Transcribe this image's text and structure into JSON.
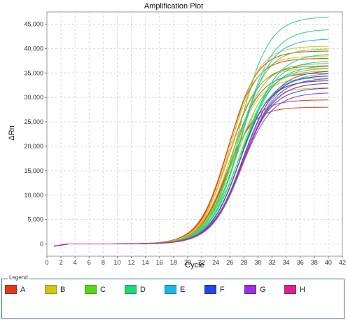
{
  "chart_data": {
    "type": "line",
    "title": "Amplification Plot",
    "xlabel": "Cycle",
    "ylabel": "ΔRn",
    "xlim": [
      0,
      42
    ],
    "ylim": [
      -2500,
      47500
    ],
    "x_ticks": [
      0,
      2,
      4,
      6,
      8,
      10,
      12,
      14,
      16,
      18,
      20,
      22,
      24,
      26,
      28,
      30,
      32,
      34,
      36,
      38,
      40,
      42
    ],
    "y_ticks": [
      0,
      5000,
      10000,
      15000,
      20000,
      25000,
      30000,
      35000,
      40000,
      45000
    ],
    "y_tick_labels": [
      "0",
      "5,000",
      "10,000",
      "15,000",
      "20,000",
      "25,000",
      "30,000",
      "35,000",
      "40,000",
      "45,000"
    ],
    "grid": true,
    "x_cycles": [
      1,
      40
    ],
    "series": [
      {
        "name": "A",
        "color": "#e03a1a",
        "curves": [
          {
            "plateau": 38000,
            "midpoint": 25.6,
            "slope": 2.0
          },
          {
            "plateau": 36500,
            "midpoint": 25.9,
            "slope": 2.1
          },
          {
            "plateau": 39500,
            "midpoint": 25.8,
            "slope": 2.0
          },
          {
            "plateau": 28000,
            "midpoint": 25.4,
            "slope": 1.9
          },
          {
            "plateau": 35000,
            "midpoint": 26.1,
            "slope": 2.1
          },
          {
            "plateau": 29500,
            "midpoint": 25.7,
            "slope": 2.0
          }
        ]
      },
      {
        "name": "B",
        "color": "#d4c419",
        "curves": [
          {
            "plateau": 36000,
            "midpoint": 25.8,
            "slope": 2.0
          },
          {
            "plateau": 34000,
            "midpoint": 26.0,
            "slope": 2.1
          },
          {
            "plateau": 32000,
            "midpoint": 26.2,
            "slope": 2.1
          },
          {
            "plateau": 40500,
            "midpoint": 26.1,
            "slope": 2.0
          },
          {
            "plateau": 38500,
            "midpoint": 25.9,
            "slope": 2.0
          }
        ]
      },
      {
        "name": "C",
        "color": "#5ad51c",
        "curves": [
          {
            "plateau": 37000,
            "midpoint": 26.6,
            "slope": 2.1
          },
          {
            "plateau": 35500,
            "midpoint": 26.9,
            "slope": 2.2
          },
          {
            "plateau": 33500,
            "midpoint": 27.1,
            "slope": 2.2
          },
          {
            "plateau": 40000,
            "midpoint": 27.0,
            "slope": 2.1
          },
          {
            "plateau": 36000,
            "midpoint": 27.4,
            "slope": 2.2
          }
        ]
      },
      {
        "name": "D",
        "color": "#1fd67a",
        "curves": [
          {
            "plateau": 46500,
            "midpoint": 27.3,
            "slope": 2.1
          },
          {
            "plateau": 44000,
            "midpoint": 27.6,
            "slope": 2.2
          },
          {
            "plateau": 37500,
            "midpoint": 27.8,
            "slope": 2.2
          },
          {
            "plateau": 34500,
            "midpoint": 27.5,
            "slope": 2.2
          },
          {
            "plateau": 39000,
            "midpoint": 28.0,
            "slope": 2.3
          }
        ]
      },
      {
        "name": "E",
        "color": "#1fb5e8",
        "curves": [
          {
            "plateau": 42000,
            "midpoint": 27.5,
            "slope": 2.1
          },
          {
            "plateau": 36500,
            "midpoint": 27.7,
            "slope": 2.2
          },
          {
            "plateau": 33000,
            "midpoint": 27.9,
            "slope": 2.2
          },
          {
            "plateau": 35000,
            "midpoint": 28.1,
            "slope": 2.3
          }
        ]
      },
      {
        "name": "F",
        "color": "#2246e0",
        "curves": [
          {
            "plateau": 33500,
            "midpoint": 27.3,
            "slope": 2.1
          },
          {
            "plateau": 32000,
            "midpoint": 27.6,
            "slope": 2.2
          },
          {
            "plateau": 34500,
            "midpoint": 27.8,
            "slope": 2.2
          }
        ]
      },
      {
        "name": "G",
        "color": "#9a2ee0",
        "curves": [
          {
            "plateau": 31000,
            "midpoint": 27.6,
            "slope": 2.2
          },
          {
            "plateau": 34000,
            "midpoint": 27.9,
            "slope": 2.3
          }
        ]
      },
      {
        "name": "H",
        "color": "#d6248a",
        "curves": [
          {
            "plateau": 33000,
            "midpoint": 27.8,
            "slope": 2.2
          },
          {
            "plateau": 35500,
            "midpoint": 28.0,
            "slope": 2.3
          }
        ]
      }
    ]
  },
  "legend": {
    "title": "Legend"
  }
}
